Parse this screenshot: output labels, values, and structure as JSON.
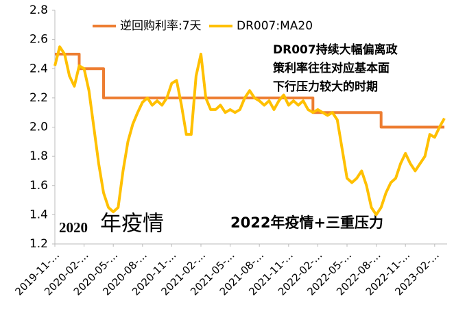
{
  "chart_data": {
    "type": "line",
    "categories": [
      "2019-11-…",
      null,
      null,
      null,
      null,
      null,
      "2020-02-…",
      null,
      null,
      null,
      null,
      null,
      "2020-05-…",
      null,
      null,
      null,
      null,
      null,
      "2020-08-…",
      null,
      null,
      null,
      null,
      null,
      "2020-11-…",
      null,
      null,
      null,
      null,
      null,
      "2021-02-…",
      null,
      null,
      null,
      null,
      null,
      "2021-05-…",
      null,
      null,
      null,
      null,
      null,
      "2021-08-…",
      null,
      null,
      null,
      null,
      null,
      "2021-11-…",
      null,
      null,
      null,
      null,
      null,
      "2022-02-…",
      null,
      null,
      null,
      null,
      null,
      "2022-05-…",
      null,
      null,
      null,
      null,
      null,
      "2022-08-…",
      null,
      null,
      null,
      null,
      null,
      "2022-11-…",
      null,
      null,
      null,
      null,
      null,
      "2023-02-…",
      null,
      null
    ],
    "series": [
      {
        "name": "逆回购利率:7天",
        "color": "#ed7d31",
        "step": true,
        "values": [
          2.5,
          2.5,
          2.5,
          2.5,
          2.5,
          2.4,
          2.4,
          2.4,
          2.4,
          2.4,
          2.2,
          2.2,
          2.2,
          2.2,
          2.2,
          2.2,
          2.2,
          2.2,
          2.2,
          2.2,
          2.2,
          2.2,
          2.2,
          2.2,
          2.2,
          2.2,
          2.2,
          2.2,
          2.2,
          2.2,
          2.2,
          2.2,
          2.2,
          2.2,
          2.2,
          2.2,
          2.2,
          2.2,
          2.2,
          2.2,
          2.2,
          2.2,
          2.2,
          2.2,
          2.2,
          2.2,
          2.2,
          2.2,
          2.2,
          2.2,
          2.2,
          2.2,
          2.2,
          2.1,
          2.1,
          2.1,
          2.1,
          2.1,
          2.1,
          2.1,
          2.1,
          2.1,
          2.1,
          2.1,
          2.1,
          2.1,
          2.1,
          2.0,
          2.0,
          2.0,
          2.0,
          2.0,
          2.0,
          2.0,
          2.0,
          2.0,
          2.0,
          2.0,
          2.0,
          2.0,
          2.0
        ]
      },
      {
        "name": "DR007:MA20",
        "color": "#ffc000",
        "values": [
          2.42,
          2.55,
          2.5,
          2.35,
          2.28,
          2.42,
          2.4,
          2.25,
          2.0,
          1.75,
          1.55,
          1.45,
          1.42,
          1.45,
          1.7,
          1.9,
          2.02,
          2.1,
          2.17,
          2.2,
          2.15,
          2.18,
          2.15,
          2.2,
          2.3,
          2.32,
          2.15,
          1.95,
          1.95,
          2.35,
          2.5,
          2.2,
          2.12,
          2.12,
          2.15,
          2.1,
          2.12,
          2.1,
          2.12,
          2.2,
          2.25,
          2.2,
          2.18,
          2.15,
          2.18,
          2.12,
          2.18,
          2.22,
          2.15,
          2.18,
          2.15,
          2.18,
          2.12,
          2.1,
          2.12,
          2.1,
          2.08,
          2.1,
          2.05,
          1.85,
          1.65,
          1.62,
          1.65,
          1.7,
          1.6,
          1.45,
          1.4,
          1.45,
          1.55,
          1.62,
          1.65,
          1.75,
          1.82,
          1.75,
          1.7,
          1.75,
          1.8,
          1.95,
          1.93,
          2.0,
          2.06
        ]
      }
    ],
    "ylim": [
      1.2,
      2.8
    ],
    "yticks": [
      1.2,
      1.4,
      1.6,
      1.8,
      {
        "value": 2,
        "label": "2.0"
      },
      2.2,
      2.4,
      2.6,
      2.8
    ],
    "grid": false,
    "legend": "top",
    "annotations": [
      {
        "lines": [
          "DR007持续大幅偏离政",
          "策利率往往对应基本面",
          "下行压力较大的时期"
        ]
      },
      {
        "parts": [
          "2020",
          "年疫情"
        ]
      },
      {
        "text": "2022年疫情+三重压力"
      }
    ]
  }
}
